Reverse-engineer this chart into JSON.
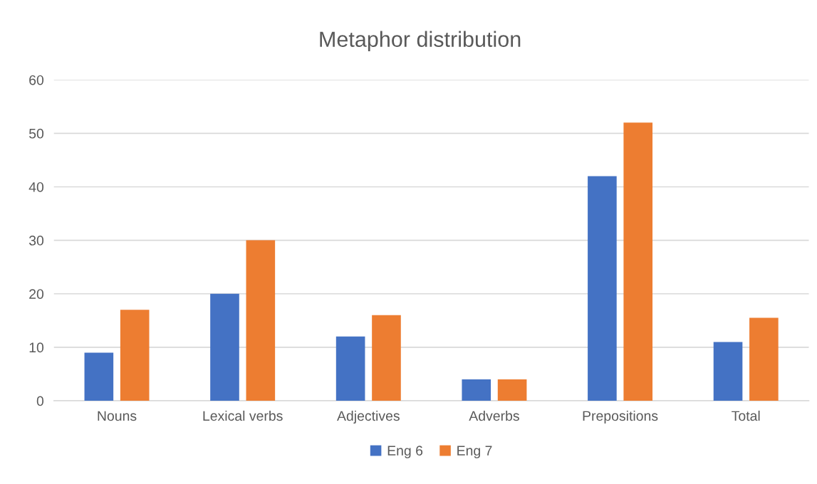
{
  "chart_data": {
    "type": "bar",
    "title": "Metaphor distribution",
    "categories": [
      "Nouns",
      "Lexical verbs",
      "Adjectives",
      "Adverbs",
      "Prepositions",
      "Total"
    ],
    "series": [
      {
        "name": "Eng 6",
        "color": "#4472c4",
        "values": [
          9,
          20,
          12,
          4,
          42,
          11
        ]
      },
      {
        "name": "Eng 7",
        "color": "#ed7d31",
        "values": [
          17,
          30,
          16,
          4,
          52,
          15.5
        ]
      }
    ],
    "ylim": [
      0,
      60
    ],
    "yticks": [
      0,
      10,
      20,
      30,
      40,
      50,
      60
    ],
    "grid": "y",
    "legend": "bottom"
  }
}
